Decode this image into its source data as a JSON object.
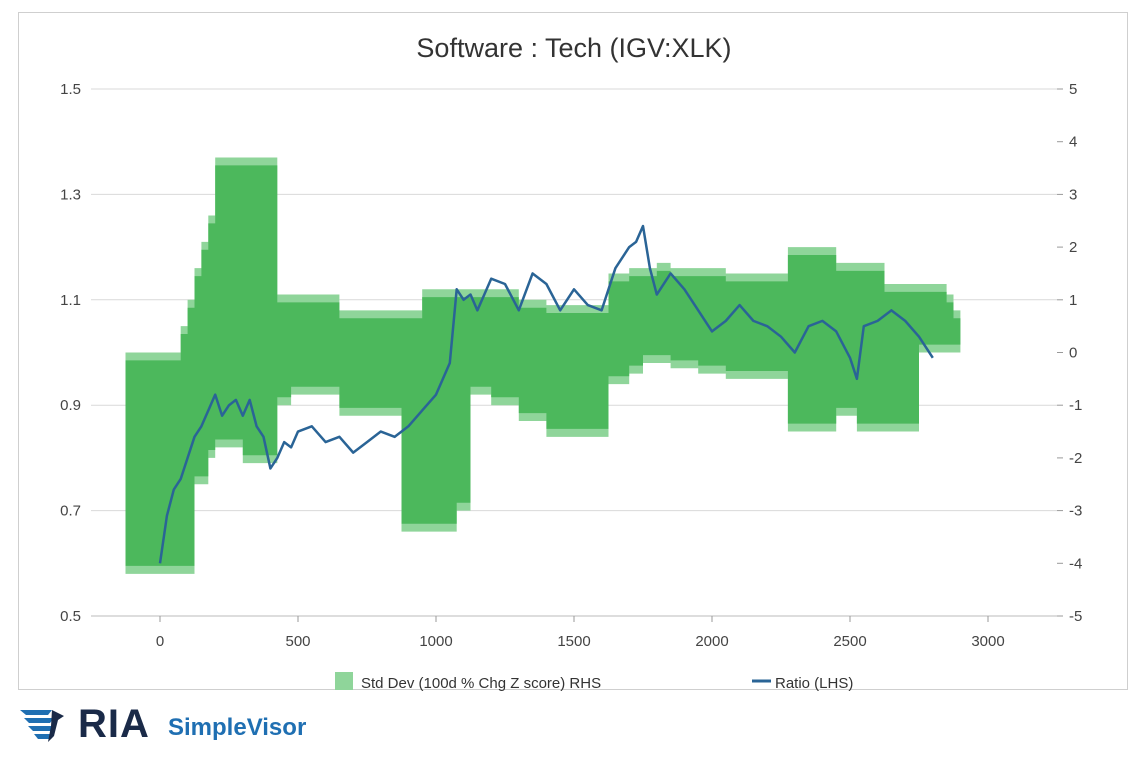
{
  "chart_data": {
    "type": "area",
    "title": "Software : Tech (IGV:XLK)",
    "xlabel": "",
    "ylabel": "",
    "grid": true,
    "legend_position": "bottom",
    "x_axis": {
      "range": [
        -250,
        3250
      ],
      "ticks": [
        0,
        500,
        1000,
        1500,
        2000,
        2500,
        3000
      ]
    },
    "y_left": {
      "range": [
        0.5,
        1.5
      ],
      "ticks": [
        0.5,
        0.7,
        0.9,
        1.1,
        1.3,
        1.5
      ],
      "tick_labels": [
        "0.5",
        "0.7",
        "0.9",
        "1.1",
        "1.3",
        "1.5"
      ]
    },
    "y_right": {
      "range": [
        -5,
        5
      ],
      "ticks": [
        -5,
        -4,
        -3,
        -2,
        -1,
        0,
        1,
        2,
        3,
        4,
        5
      ]
    },
    "series": [
      {
        "name": "Std Dev (100d % Chg Z score) RHS",
        "kind": "band",
        "axis": "right",
        "color": "#4cb85c",
        "x": [
          -125,
          25,
          75,
          100,
          125,
          150,
          175,
          200,
          300,
          375,
          425,
          475,
          550,
          650,
          725,
          800,
          875,
          950,
          1025,
          1075,
          1125,
          1200,
          1300,
          1400,
          1500,
          1625,
          1700,
          1750,
          1800,
          1850,
          1950,
          2050,
          2200,
          2275,
          2350,
          2450,
          2525,
          2625,
          2750,
          2850,
          2875,
          2900
        ],
        "upper": [
          0.0,
          0.0,
          0.5,
          1.0,
          1.6,
          2.1,
          2.6,
          3.7,
          3.7,
          3.7,
          1.1,
          1.1,
          1.1,
          0.8,
          0.8,
          0.8,
          0.8,
          1.2,
          1.2,
          1.2,
          1.2,
          1.2,
          1.0,
          0.9,
          0.9,
          1.5,
          1.6,
          1.6,
          1.7,
          1.6,
          1.6,
          1.5,
          1.5,
          2.0,
          2.0,
          1.7,
          1.7,
          1.3,
          1.3,
          1.1,
          0.8,
          0.4
        ],
        "lower": [
          -4.2,
          -4.2,
          -4.2,
          -4.2,
          -2.5,
          -2.5,
          -2.0,
          -1.8,
          -2.1,
          -2.1,
          -1.0,
          -0.8,
          -0.8,
          -1.2,
          -1.2,
          -1.2,
          -3.4,
          -3.4,
          -3.4,
          -3.0,
          -0.8,
          -1.0,
          -1.3,
          -1.6,
          -1.6,
          -0.6,
          -0.4,
          -0.2,
          -0.2,
          -0.3,
          -0.4,
          -0.5,
          -0.5,
          -1.5,
          -1.5,
          -1.2,
          -1.5,
          -1.5,
          0.0,
          0.0,
          0.0,
          0.0
        ]
      },
      {
        "name": "Ratio (LHS)",
        "kind": "line",
        "axis": "left",
        "color": "#2a6496",
        "x": [
          0,
          25,
          50,
          75,
          100,
          125,
          150,
          175,
          200,
          225,
          250,
          275,
          300,
          325,
          350,
          375,
          400,
          425,
          450,
          475,
          500,
          550,
          600,
          650,
          700,
          750,
          800,
          850,
          900,
          950,
          1000,
          1050,
          1075,
          1100,
          1125,
          1150,
          1200,
          1250,
          1300,
          1350,
          1400,
          1450,
          1500,
          1550,
          1600,
          1650,
          1700,
          1725,
          1750,
          1775,
          1800,
          1850,
          1900,
          1950,
          2000,
          2050,
          2100,
          2150,
          2200,
          2250,
          2300,
          2350,
          2400,
          2450,
          2500,
          2525,
          2550,
          2600,
          2650,
          2700,
          2750,
          2800
        ],
        "y": [
          0.6,
          0.69,
          0.74,
          0.76,
          0.8,
          0.84,
          0.86,
          0.89,
          0.92,
          0.88,
          0.9,
          0.91,
          0.88,
          0.91,
          0.86,
          0.84,
          0.78,
          0.8,
          0.83,
          0.82,
          0.85,
          0.86,
          0.83,
          0.84,
          0.81,
          0.83,
          0.85,
          0.84,
          0.86,
          0.89,
          0.92,
          0.98,
          1.12,
          1.1,
          1.11,
          1.08,
          1.14,
          1.13,
          1.08,
          1.15,
          1.13,
          1.08,
          1.12,
          1.09,
          1.08,
          1.16,
          1.2,
          1.21,
          1.24,
          1.16,
          1.11,
          1.15,
          1.12,
          1.08,
          1.04,
          1.06,
          1.09,
          1.06,
          1.05,
          1.03,
          1.0,
          1.05,
          1.06,
          1.04,
          0.99,
          0.95,
          1.05,
          1.06,
          1.08,
          1.06,
          1.03,
          0.99
        ]
      }
    ]
  }
}
